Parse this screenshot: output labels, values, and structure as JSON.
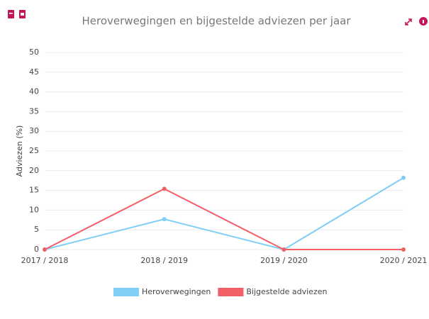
{
  "chart_data": {
    "type": "line",
    "title": "Heroverwegingen en bijgestelde adviezen per jaar",
    "y_label": "Adviezen (%)",
    "categories": [
      "2017 / 2018",
      "2018 / 2019",
      "2019 / 2020",
      "2020 / 2021"
    ],
    "series": [
      {
        "name": "Heroverwegingen",
        "color": "#7fcff5",
        "values": [
          0,
          7.7,
          0,
          18.2
        ]
      },
      {
        "name": "Bijgestelde adviezen",
        "color": "#f25f67",
        "values": [
          0,
          15.4,
          0,
          0
        ]
      }
    ],
    "ylim": [
      0,
      50
    ],
    "yticks": [
      0,
      5,
      10,
      15,
      20,
      25,
      30,
      35,
      40,
      45,
      50
    ],
    "grid": true,
    "legend": "bottom"
  }
}
